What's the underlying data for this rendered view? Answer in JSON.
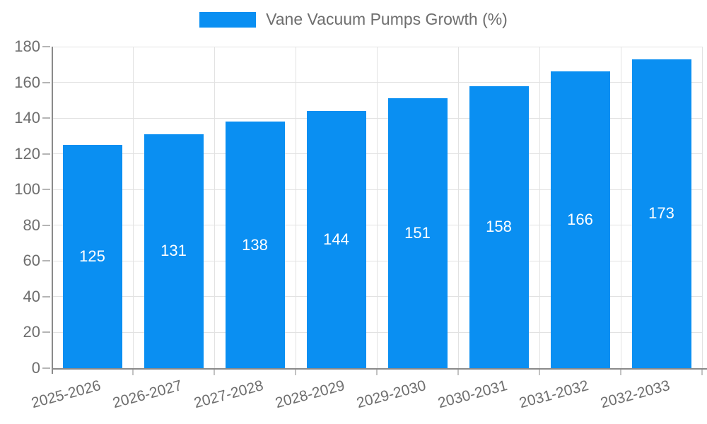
{
  "legend": {
    "label": "Vane Vacuum Pumps Growth (%)",
    "swatch_color": "#0a8ff2"
  },
  "chart_data": {
    "type": "bar",
    "title": "Vane Vacuum Pumps Growth (%)",
    "categories": [
      "2025-2026",
      "2026-2027",
      "2027-2028",
      "2028-2029",
      "2029-2030",
      "2030-2031",
      "2031-2032",
      "2032-2033"
    ],
    "values": [
      125,
      131,
      138,
      144,
      151,
      158,
      166,
      173
    ],
    "value_labels": [
      "125",
      "131",
      "138",
      "144",
      "151",
      "158",
      "166",
      "173"
    ],
    "xlabel": "",
    "ylabel": "",
    "ylim": [
      0,
      180
    ],
    "yticks": [
      0,
      20,
      40,
      60,
      80,
      100,
      120,
      140,
      160,
      180
    ],
    "grid": true,
    "legend_position": "top-center",
    "x_label_rotation_deg": -15,
    "colors": {
      "bar": "#0a8ff2",
      "bar_value_text": "#ffffff",
      "axis_line": "#8a8a8a",
      "gridline": "#e2e2e2",
      "tick": "#b5b5b5",
      "tick_text": "#6e6e6e",
      "legend_text": "#6e6e6e",
      "background": "#ffffff"
    }
  }
}
